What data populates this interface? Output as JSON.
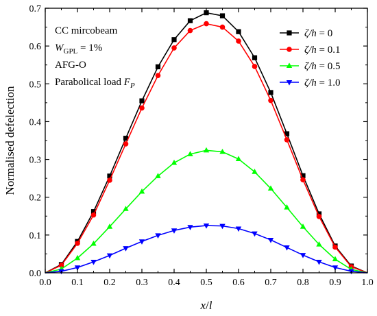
{
  "chart_data": {
    "type": "line",
    "title": "",
    "xlabel_main": "x",
    "xlabel_sep": "/",
    "xlabel_var": "l",
    "ylabel": "Normalised defelection",
    "xlim": [
      0.0,
      1.0
    ],
    "ylim": [
      0.0,
      0.7
    ],
    "xticks": [
      "0.0",
      "0.1",
      "0.2",
      "0.3",
      "0.4",
      "0.5",
      "0.6",
      "0.7",
      "0.8",
      "0.9",
      "1.0"
    ],
    "yticks": [
      "0.0",
      "0.1",
      "0.2",
      "0.3",
      "0.4",
      "0.5",
      "0.6",
      "0.7"
    ],
    "grid": false,
    "legend_position": "top-right",
    "annotations": {
      "line1": "CC mircobeam",
      "line2_main": "W",
      "line2_sub": "GPL",
      "line2_rest": " = 1%",
      "line3": "AFG-O",
      "line4_main": "Parabolical load ",
      "line4_var": "F",
      "line4_sub": "P"
    },
    "x": [
      0.0,
      0.05,
      0.1,
      0.15,
      0.2,
      0.25,
      0.3,
      0.35,
      0.4,
      0.45,
      0.5,
      0.55,
      0.6,
      0.65,
      0.7,
      0.75,
      0.8,
      0.85,
      0.9,
      0.95,
      1.0
    ],
    "series": [
      {
        "name": "ζ/h = 0",
        "name_var": "ζ/h",
        "name_val": " = 0",
        "color": "#000000",
        "marker": "square",
        "values": [
          0.0,
          0.022,
          0.083,
          0.162,
          0.256,
          0.356,
          0.455,
          0.545,
          0.617,
          0.667,
          0.688,
          0.68,
          0.638,
          0.569,
          0.477,
          0.368,
          0.257,
          0.156,
          0.071,
          0.018,
          0.0
        ]
      },
      {
        "name": "ζ/h = 0.1",
        "name_var": "ζ/h",
        "name_val": " = 0.1",
        "color": "#ff0000",
        "marker": "circle",
        "values": [
          0.0,
          0.02,
          0.078,
          0.153,
          0.245,
          0.341,
          0.436,
          0.522,
          0.595,
          0.641,
          0.659,
          0.65,
          0.613,
          0.546,
          0.456,
          0.352,
          0.246,
          0.149,
          0.068,
          0.016,
          0.0
        ]
      },
      {
        "name": "ζ/h = 0.5",
        "name_var": "ζ/h",
        "name_val": " = 0.5",
        "color": "#00ff00",
        "marker": "triangle-up",
        "values": [
          0.0,
          0.01,
          0.039,
          0.077,
          0.122,
          0.169,
          0.215,
          0.256,
          0.291,
          0.314,
          0.324,
          0.32,
          0.301,
          0.267,
          0.223,
          0.173,
          0.122,
          0.075,
          0.036,
          0.009,
          0.0
        ]
      },
      {
        "name": "ζ/h = 1.0",
        "name_var": "ζ/h",
        "name_val": " = 1.0",
        "color": "#0000ff",
        "marker": "triangle-down",
        "values": [
          0.0,
          0.004,
          0.014,
          0.029,
          0.046,
          0.065,
          0.083,
          0.099,
          0.112,
          0.121,
          0.125,
          0.124,
          0.117,
          0.104,
          0.087,
          0.067,
          0.047,
          0.029,
          0.014,
          0.004,
          0.0
        ]
      }
    ]
  }
}
